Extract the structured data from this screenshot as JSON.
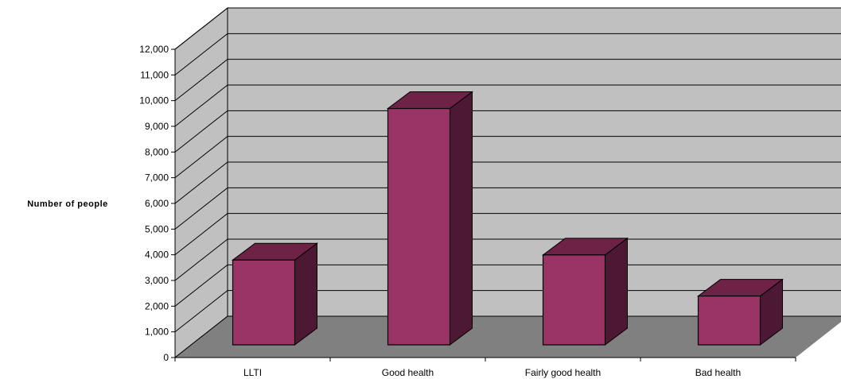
{
  "chart_data": {
    "type": "bar",
    "style": "3d-column",
    "title": "",
    "xlabel": "",
    "ylabel": "Number of people",
    "ylim": [
      0,
      12000
    ],
    "ytick_step": 1000,
    "yticks": [
      "0",
      "1,000",
      "2,000",
      "3,000",
      "4,000",
      "5,000",
      "6,000",
      "7,000",
      "8,000",
      "9,000",
      "10,000",
      "11,000",
      "12,000"
    ],
    "categories": [
      "LLTI",
      "Good health",
      "Fairly good health",
      "Bad health"
    ],
    "values": [
      3300,
      9200,
      3500,
      1900
    ],
    "grid": true,
    "legend": "none",
    "colors": {
      "bar_front": "#993366",
      "bar_top": "#6e2246",
      "bar_side": "#4d1833",
      "back_wall": "#c0c0c0",
      "side_wall": "#c0c0c0",
      "floor": "#808080"
    }
  }
}
